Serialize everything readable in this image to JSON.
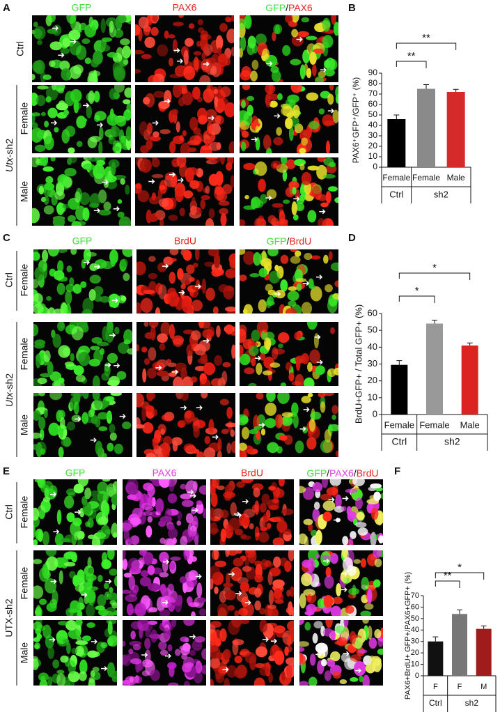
{
  "figure": {
    "A": {
      "letter": "A",
      "headers": [
        "GFP",
        "PAX6",
        "GFP",
        "/",
        "PAX6"
      ],
      "ctrl": "Ctrl",
      "utx_italic": "Utx",
      "utx_rest": "-sh2",
      "female": "Female",
      "male": "Male"
    },
    "C": {
      "letter": "C",
      "headers": [
        "GFP",
        "BrdU",
        "GFP",
        "/",
        "BrdU"
      ],
      "ctrl": "Ctrl",
      "ctrl_female": "Female",
      "utx_italic": "Utx",
      "utx_rest": "-sh2",
      "female": "Female",
      "male": "Male"
    },
    "E": {
      "letter": "E",
      "headers": [
        "GFP",
        "PAX6",
        "BrdU",
        "GFP",
        "/",
        "PAX6",
        "/",
        "BrdU"
      ],
      "ctrl": "Ctrl",
      "ctrl_female": "Female",
      "utx": "UTX-sh2",
      "female": "Female",
      "male": "Male"
    }
  },
  "chart_data": [
    {
      "type": "bar",
      "letter": "B",
      "ylabel": "PAX6⁺GFP⁺/GFP⁺ (%)",
      "categories": [
        "Female",
        "Female",
        "Male"
      ],
      "groups": [
        "Ctrl",
        "sh2"
      ],
      "values": [
        46,
        75,
        72
      ],
      "errors": [
        4,
        4,
        2.5
      ],
      "colors": [
        "#000000",
        "#8a8a8a",
        "#d62a2a"
      ],
      "ylim": [
        0,
        90
      ],
      "yticks": [
        0,
        10,
        20,
        30,
        40,
        50,
        60,
        70,
        80,
        90
      ],
      "annotations": [
        "**",
        "**"
      ]
    },
    {
      "type": "bar",
      "letter": "D",
      "ylabel": "BrdU+GFP+ / Total GFP+ (%)",
      "categories": [
        "Female",
        "Female",
        "Male"
      ],
      "groups": [
        "Ctrl",
        "sh2"
      ],
      "values": [
        29.5,
        54,
        41
      ],
      "errors": [
        2.5,
        2,
        1.5
      ],
      "colors": [
        "#000000",
        "#999999",
        "#dd2222"
      ],
      "ylim": [
        0,
        60
      ],
      "yticks": [
        0,
        10,
        20,
        30,
        40,
        50,
        60
      ],
      "annotations": [
        "*",
        "*"
      ]
    },
    {
      "type": "bar",
      "letter": "F",
      "ylabel": "PAX6+BrdU+ GFP+/PAX6+GFP+ (%)",
      "categories": [
        "F",
        "F",
        "M"
      ],
      "groups": [
        "Ctrl",
        "sh2"
      ],
      "values": [
        30,
        54,
        41
      ],
      "errors": [
        4,
        3.5,
        2.5
      ],
      "colors": [
        "#111111",
        "#777777",
        "#a01c1c"
      ],
      "ylim": [
        0,
        70
      ],
      "yticks": [
        0,
        10,
        20,
        30,
        40,
        50,
        60,
        70
      ],
      "annotations": [
        "**",
        "*"
      ]
    }
  ]
}
